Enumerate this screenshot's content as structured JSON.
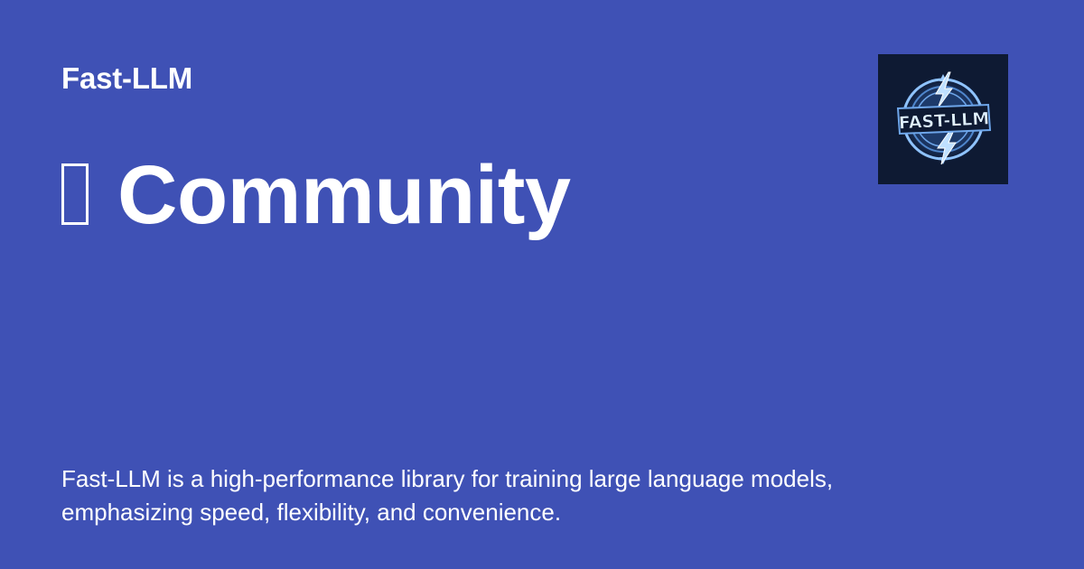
{
  "site": {
    "name": "Fast-LLM"
  },
  "page": {
    "title": "Community",
    "title_icon": "missing-glyph-icon",
    "description": "Fast-LLM is a high-performance library for training large language models, emphasizing speed, flexibility, and convenience."
  },
  "logo": {
    "text": "FAST-LLM",
    "icon": "lightning-emblem-icon"
  },
  "colors": {
    "background": "#3f51b5",
    "text": "#ffffff",
    "logo_background": "#0e1a33",
    "logo_accent": "#7ab8ff"
  }
}
